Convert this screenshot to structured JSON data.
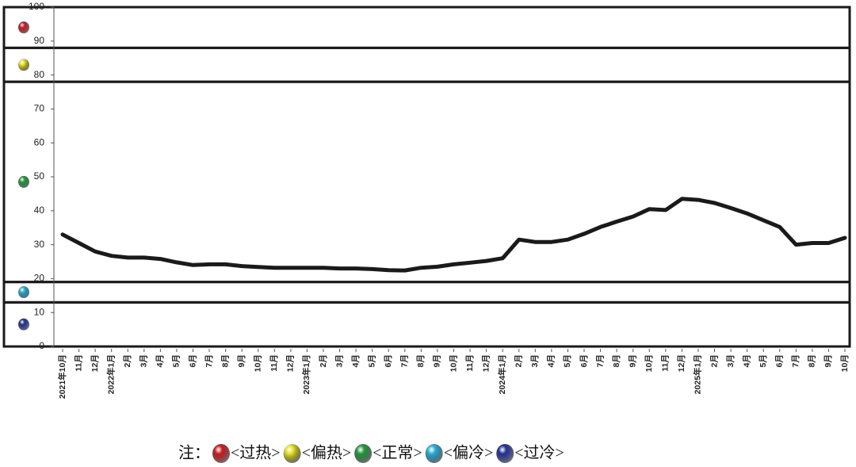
{
  "chart_data": {
    "type": "line",
    "categories": [
      "2021年10月",
      "11月",
      "12月",
      "2022年1月",
      "2月",
      "3月",
      "4月",
      "5月",
      "6月",
      "7月",
      "8月",
      "9月",
      "10月",
      "11月",
      "12月",
      "2023年1月",
      "2月",
      "3月",
      "4月",
      "5月",
      "6月",
      "7月",
      "8月",
      "9月",
      "10月",
      "11月",
      "12月",
      "2024年1月",
      "2月",
      "3月",
      "4月",
      "5月",
      "6月",
      "7月",
      "8月",
      "9月",
      "10月",
      "11月",
      "12月",
      "2025年1月",
      "2月",
      "3月",
      "4月",
      "5月",
      "6月",
      "7月",
      "8月",
      "9月",
      "10月"
    ],
    "values": [
      33,
      30.5,
      28,
      26.7,
      26.2,
      26.2,
      25.8,
      24.8,
      24,
      24.2,
      24.2,
      23.7,
      23.4,
      23.2,
      23.2,
      23.2,
      23.2,
      23,
      23,
      22.8,
      22.5,
      22.4,
      23.2,
      23.5,
      24.2,
      24.7,
      25.2,
      26,
      31.5,
      30.8,
      30.8,
      31.5,
      33.2,
      35.2,
      36.8,
      38.3,
      40.5,
      40.2,
      43.5,
      43.2,
      42.3,
      40.8,
      39.2,
      37.2,
      35.2,
      30,
      30.5,
      30.5,
      32
    ],
    "color": "#1a1a1a",
    "ylim": [
      0,
      100
    ],
    "yticks": [
      0,
      10,
      20,
      30,
      40,
      50,
      60,
      70,
      80,
      90,
      100
    ],
    "zone_bounds": [
      100,
      88,
      78,
      19,
      13,
      0
    ],
    "legend_label": "注：",
    "zones": [
      {
        "name": "<过热>",
        "color": "#d0161c"
      },
      {
        "name": "<偏热>",
        "color": "#e8e01a"
      },
      {
        "name": "<正常>",
        "color": "#1d9a3a"
      },
      {
        "name": "<偏冷>",
        "color": "#21b0e0"
      },
      {
        "name": "<过冷>",
        "color": "#1d2f9a"
      }
    ]
  }
}
